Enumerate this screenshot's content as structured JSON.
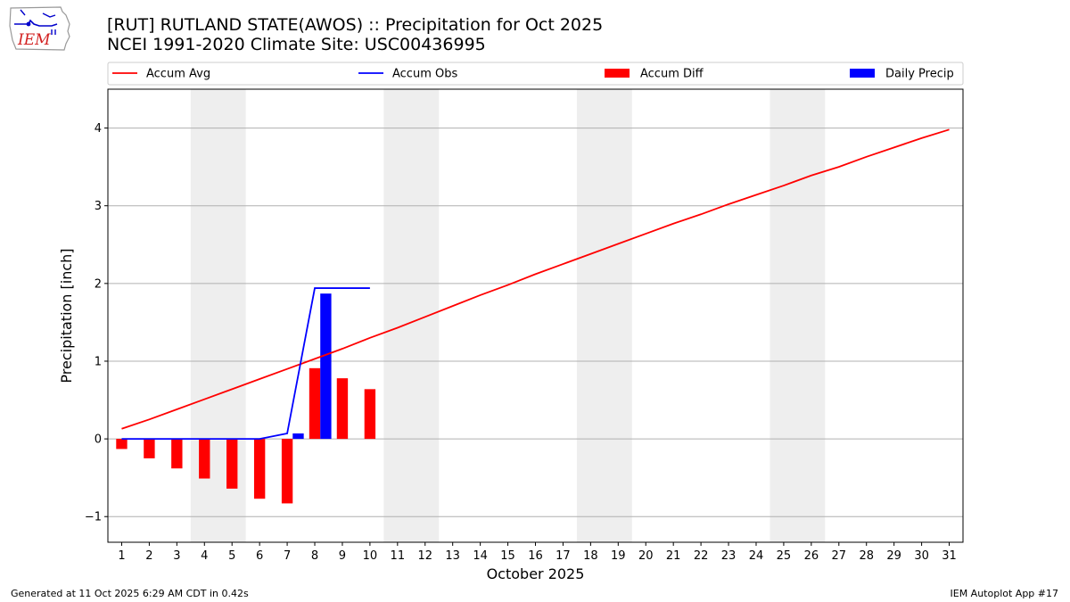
{
  "header": {
    "title_line1": "[RUT] RUTLAND STATE(AWOS) :: Precipitation for Oct 2025",
    "title_line2": "NCEI 1991-2020 Climate Site: USC00436995"
  },
  "logo": {
    "text": "IEM",
    "icon": "iem-iowa-logo"
  },
  "footer": {
    "generated": "Generated at 11 Oct 2025 6:29 AM CDT in 0.42s",
    "app": "IEM Autoplot App #17"
  },
  "chart_data": {
    "type": "bar",
    "xlabel": "October 2025",
    "ylabel": "Precipitation [inch]",
    "x": [
      1,
      2,
      3,
      4,
      5,
      6,
      7,
      8,
      9,
      10,
      11,
      12,
      13,
      14,
      15,
      16,
      17,
      18,
      19,
      20,
      21,
      22,
      23,
      24,
      25,
      26,
      27,
      28,
      29,
      30,
      31
    ],
    "xlim": [
      0.5,
      31.5
    ],
    "ylim": [
      -1.33,
      4.5
    ],
    "yticks": [
      -1,
      0,
      1,
      2,
      3,
      4
    ],
    "ytick_labels": [
      "−1",
      "0",
      "1",
      "2",
      "3",
      "4"
    ],
    "grid": "y",
    "legend_position": "top",
    "weekend_shading": [
      [
        3.5,
        5.5
      ],
      [
        10.5,
        12.5
      ],
      [
        17.5,
        19.5
      ],
      [
        24.5,
        26.5
      ]
    ],
    "series": [
      {
        "name": "Accum Avg",
        "kind": "line",
        "color": "#ff0000",
        "x": [
          1,
          2,
          3,
          4,
          5,
          6,
          7,
          8,
          9,
          10,
          11,
          12,
          13,
          14,
          15,
          16,
          17,
          18,
          19,
          20,
          21,
          22,
          23,
          24,
          25,
          26,
          27,
          28,
          29,
          30,
          31
        ],
        "values": [
          0.13,
          0.25,
          0.38,
          0.51,
          0.64,
          0.77,
          0.9,
          1.03,
          1.16,
          1.3,
          1.43,
          1.57,
          1.71,
          1.85,
          1.98,
          2.12,
          2.25,
          2.38,
          2.51,
          2.64,
          2.77,
          2.89,
          3.02,
          3.14,
          3.26,
          3.39,
          3.5,
          3.63,
          3.75,
          3.87,
          3.98
        ]
      },
      {
        "name": "Accum Obs",
        "kind": "line",
        "color": "#0000ff",
        "x": [
          1,
          2,
          3,
          4,
          5,
          6,
          7,
          8,
          9,
          10
        ],
        "values": [
          0,
          0,
          0,
          0,
          0,
          0,
          0.07,
          1.94,
          1.94,
          1.94
        ]
      },
      {
        "name": "Accum Diff",
        "kind": "bar",
        "color": "#ff0000",
        "x": [
          1,
          2,
          3,
          4,
          5,
          6,
          7,
          8,
          9,
          10
        ],
        "values": [
          -0.13,
          -0.25,
          -0.38,
          -0.51,
          -0.64,
          -0.77,
          -0.83,
          0.91,
          0.78,
          0.64
        ]
      },
      {
        "name": "Daily Precip",
        "kind": "bar",
        "color": "#0000ff",
        "x": [
          7,
          8
        ],
        "values": [
          0.07,
          1.87
        ]
      }
    ]
  }
}
